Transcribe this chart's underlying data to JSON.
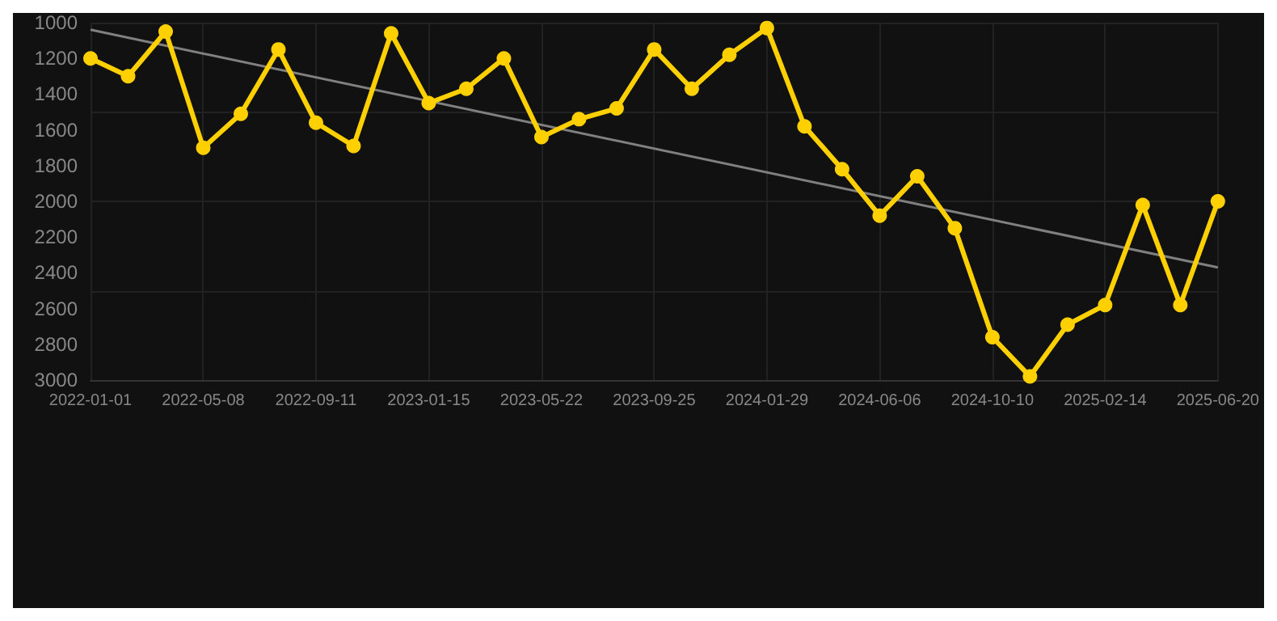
{
  "chart_data": {
    "type": "line",
    "categories": [
      "2022-01-01",
      null,
      null,
      "2022-05-08",
      null,
      null,
      "2022-09-11",
      null,
      null,
      "2023-01-15",
      null,
      null,
      "2023-05-22",
      null,
      null,
      "2023-09-25",
      null,
      null,
      "2024-01-29",
      null,
      null,
      "2024-06-06",
      null,
      null,
      "2024-10-10",
      null,
      null,
      "2025-02-14",
      null,
      null,
      "2025-06-20"
    ],
    "series": [
      {
        "color": "#ffd000",
        "marker": "circle",
        "values": [
          1200,
          1300,
          1050,
          1700,
          1510,
          1150,
          1560,
          1690,
          1060,
          1450,
          1370,
          1200,
          1640,
          1540,
          1480,
          1150,
          1370,
          1180,
          1030,
          1580,
          1820,
          2080,
          1860,
          2150,
          2760,
          2980,
          2690,
          2580,
          2020,
          2580,
          2000
        ]
      },
      {
        "color": "#808080",
        "marker": "none",
        "values": [
          1040,
          null,
          null,
          null,
          null,
          null,
          null,
          null,
          null,
          null,
          null,
          null,
          null,
          null,
          null,
          null,
          null,
          null,
          null,
          null,
          null,
          null,
          null,
          null,
          null,
          null,
          null,
          null,
          null,
          null,
          2370
        ]
      }
    ],
    "ylim": [
      3000,
      1000
    ],
    "yticks": [
      1000,
      1200,
      1400,
      1600,
      1800,
      2000,
      2200,
      2400,
      2600,
      2800,
      3000
    ],
    "grid": true
  }
}
